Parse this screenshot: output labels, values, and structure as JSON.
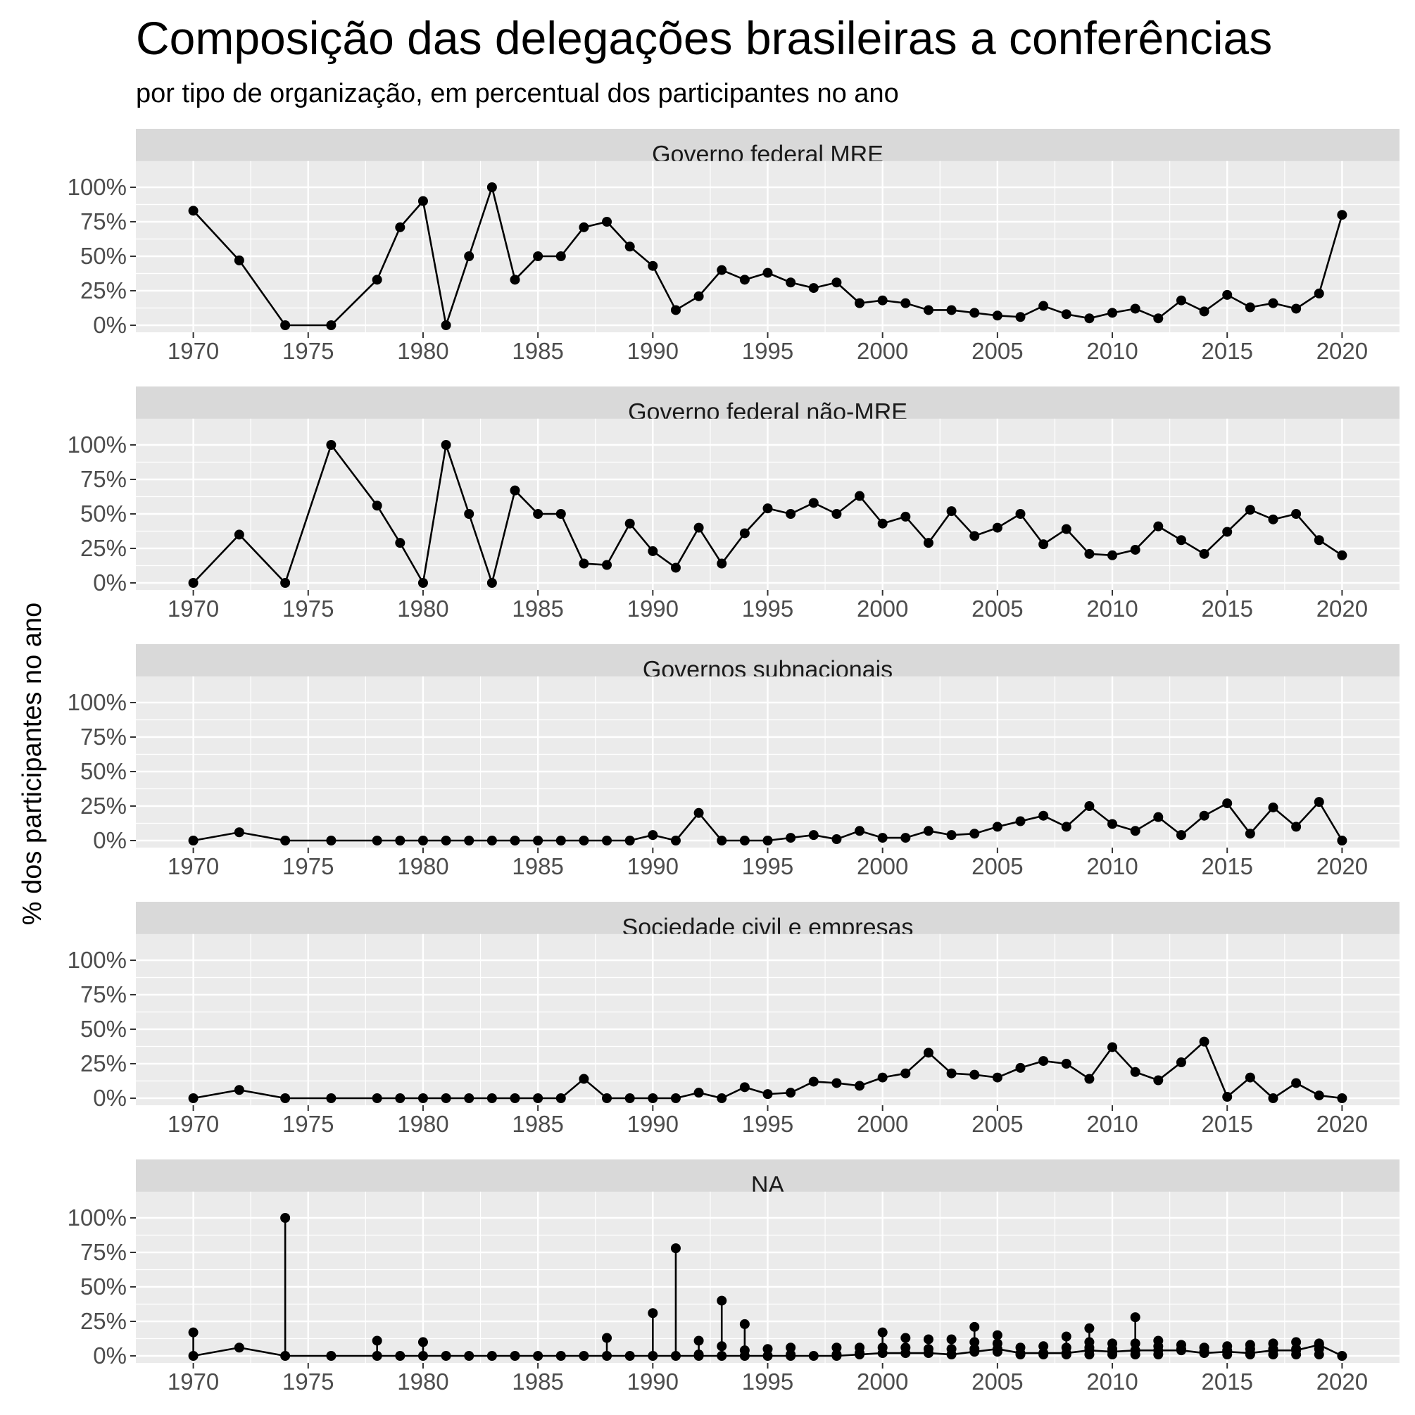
{
  "chart_data": {
    "type": "line",
    "title": "Composição das delegações brasileiras a conferências",
    "subtitle": "por tipo de organização, em percentual dos participantes no ano",
    "ylabel": "% dos participantes no ano",
    "xlabel": "",
    "xlim": [
      1967.5,
      2022.5
    ],
    "ylim": [
      0,
      1.19
    ],
    "x_ticks": [
      1970,
      1975,
      1980,
      1985,
      1990,
      1995,
      2000,
      2005,
      2010,
      2015,
      2020
    ],
    "y_ticks": [
      0,
      0.25,
      0.5,
      0.75,
      1.0
    ],
    "y_tick_labels": [
      "0%",
      "25%",
      "50%",
      "75%",
      "100%"
    ],
    "grid": true,
    "colors": {
      "line": "#000000",
      "panel_bg": "#ebebeb",
      "strip_bg": "#d9d9d9",
      "grid": "#ffffff"
    },
    "panels": [
      {
        "name": "Governo federal MRE",
        "x": [
          1970,
          1972,
          1974,
          1976,
          1978,
          1979,
          1980,
          1981,
          1982,
          1983,
          1984,
          1985,
          1986,
          1987,
          1988,
          1989,
          1990,
          1991,
          1992,
          1993,
          1994,
          1995,
          1996,
          1997,
          1998,
          1999,
          2000,
          2001,
          2002,
          2003,
          2004,
          2005,
          2006,
          2007,
          2008,
          2009,
          2010,
          2011,
          2012,
          2013,
          2014,
          2015,
          2016,
          2017,
          2018,
          2019,
          2020
        ],
        "y": [
          0.83,
          0.47,
          0,
          0,
          0.33,
          0.71,
          0.9,
          0,
          0.5,
          1.0,
          0.33,
          0.5,
          0.5,
          0.71,
          0.75,
          0.57,
          0.43,
          0.11,
          0.21,
          0.4,
          0.33,
          0.38,
          0.31,
          0.27,
          0.31,
          0.16,
          0.18,
          0.16,
          0.11,
          0.11,
          0.09,
          0.07,
          0.06,
          0.14,
          0.08,
          0.05,
          0.09,
          0.12,
          0.05,
          0.18,
          0.1,
          0.22,
          0.13,
          0.16,
          0.12,
          0.23,
          0.8
        ]
      },
      {
        "name": "Governo federal não-MRE",
        "x": [
          1970,
          1972,
          1974,
          1976,
          1978,
          1979,
          1980,
          1981,
          1982,
          1983,
          1984,
          1985,
          1986,
          1987,
          1988,
          1989,
          1990,
          1991,
          1992,
          1993,
          1994,
          1995,
          1996,
          1997,
          1998,
          1999,
          2000,
          2001,
          2002,
          2003,
          2004,
          2005,
          2006,
          2007,
          2008,
          2009,
          2010,
          2011,
          2012,
          2013,
          2014,
          2015,
          2016,
          2017,
          2018,
          2019,
          2020
        ],
        "y": [
          0,
          0.35,
          0,
          1.0,
          0.56,
          0.29,
          0,
          1.0,
          0.5,
          0,
          0.67,
          0.5,
          0.5,
          0.14,
          0.13,
          0.43,
          0.23,
          0.11,
          0.4,
          0.14,
          0.36,
          0.54,
          0.5,
          0.58,
          0.5,
          0.63,
          0.43,
          0.48,
          0.29,
          0.52,
          0.34,
          0.4,
          0.5,
          0.28,
          0.39,
          0.21,
          0.2,
          0.24,
          0.41,
          0.31,
          0.21,
          0.37,
          0.53,
          0.46,
          0.5,
          0.31,
          0.2
        ]
      },
      {
        "name": "Governos subnacionais",
        "x": [
          1970,
          1972,
          1974,
          1976,
          1978,
          1979,
          1980,
          1981,
          1982,
          1983,
          1984,
          1985,
          1986,
          1987,
          1988,
          1989,
          1990,
          1991,
          1992,
          1993,
          1994,
          1995,
          1996,
          1997,
          1998,
          1999,
          2000,
          2001,
          2002,
          2003,
          2004,
          2005,
          2006,
          2007,
          2008,
          2009,
          2010,
          2011,
          2012,
          2013,
          2014,
          2015,
          2016,
          2017,
          2018,
          2019,
          2020
        ],
        "y": [
          0,
          0.06,
          0,
          0,
          0,
          0,
          0,
          0,
          0,
          0,
          0,
          0,
          0,
          0,
          0,
          0,
          0.04,
          0,
          0.2,
          0,
          0,
          0,
          0.02,
          0.04,
          0.01,
          0.07,
          0.02,
          0.02,
          0.07,
          0.04,
          0.05,
          0.1,
          0.14,
          0.18,
          0.1,
          0.25,
          0.12,
          0.07,
          0.17,
          0.04,
          0.18,
          0.27,
          0.05,
          0.24,
          0.1,
          0.28,
          0
        ]
      },
      {
        "name": "Sociedade civil e empresas",
        "x": [
          1970,
          1972,
          1974,
          1976,
          1978,
          1979,
          1980,
          1981,
          1982,
          1983,
          1984,
          1985,
          1986,
          1987,
          1988,
          1989,
          1990,
          1991,
          1992,
          1993,
          1994,
          1995,
          1996,
          1997,
          1998,
          1999,
          2000,
          2001,
          2002,
          2003,
          2004,
          2005,
          2006,
          2007,
          2008,
          2009,
          2010,
          2011,
          2012,
          2013,
          2014,
          2015,
          2016,
          2017,
          2018,
          2019,
          2020
        ],
        "y": [
          0,
          0.06,
          0,
          0,
          0,
          0,
          0,
          0,
          0,
          0,
          0,
          0,
          0,
          0.14,
          0,
          0,
          0,
          0,
          0.04,
          0,
          0.08,
          0.03,
          0.04,
          0.12,
          0.11,
          0.09,
          0.15,
          0.18,
          0.33,
          0.18,
          0.17,
          0.15,
          0.22,
          0.27,
          0.25,
          0.14,
          0.37,
          0.19,
          0.13,
          0.26,
          0.41,
          0.01,
          0.15,
          0,
          0.11,
          0.02,
          0
        ]
      },
      {
        "name": "NA",
        "x": [
          1970,
          1972,
          1974,
          1976,
          1978,
          1979,
          1980,
          1981,
          1982,
          1983,
          1984,
          1985,
          1986,
          1987,
          1988,
          1989,
          1990,
          1991,
          1992,
          1993,
          1994,
          1995,
          1996,
          1997,
          1998,
          1999,
          2000,
          2001,
          2002,
          2003,
          2004,
          2005,
          2006,
          2007,
          2008,
          2009,
          2010,
          2011,
          2012,
          2013,
          2014,
          2015,
          2016,
          2017,
          2018,
          2019,
          2020
        ],
        "y": [
          0,
          0.06,
          0,
          0,
          0,
          0,
          0,
          0,
          0,
          0,
          0,
          0,
          0,
          0,
          0,
          0,
          0,
          0,
          0,
          0,
          0,
          0,
          0,
          0,
          0,
          0.01,
          0.02,
          0.02,
          0.02,
          0.01,
          0.03,
          0.05,
          0.02,
          0.02,
          0.02,
          0.04,
          0.03,
          0.04,
          0.04,
          0.04,
          0.02,
          0.03,
          0.02,
          0.04,
          0.04,
          0.08,
          0
        ],
        "extra_points": [
          {
            "x": 1970,
            "y": [
              0.17
            ]
          },
          {
            "x": 1974,
            "y": [
              1.0
            ]
          },
          {
            "x": 1978,
            "y": [
              0.11
            ]
          },
          {
            "x": 1980,
            "y": [
              0.1
            ]
          },
          {
            "x": 1988,
            "y": [
              0.13
            ]
          },
          {
            "x": 1990,
            "y": [
              0.31
            ]
          },
          {
            "x": 1991,
            "y": [
              0.78
            ]
          },
          {
            "x": 1992,
            "y": [
              0.11,
              0.01
            ]
          },
          {
            "x": 1993,
            "y": [
              0.4,
              0.07
            ]
          },
          {
            "x": 1994,
            "y": [
              0.23,
              0.04
            ]
          },
          {
            "x": 1995,
            "y": [
              0.05
            ]
          },
          {
            "x": 1996,
            "y": [
              0.06,
              0.01
            ]
          },
          {
            "x": 1998,
            "y": [
              0.06,
              0.01
            ]
          },
          {
            "x": 1999,
            "y": [
              0.06,
              0.02
            ]
          },
          {
            "x": 2000,
            "y": [
              0.17,
              0.06
            ]
          },
          {
            "x": 2001,
            "y": [
              0.13,
              0.06
            ]
          },
          {
            "x": 2002,
            "y": [
              0.12,
              0.05
            ]
          },
          {
            "x": 2003,
            "y": [
              0.12,
              0.05
            ]
          },
          {
            "x": 2004,
            "y": [
              0.21,
              0.1,
              0.05
            ]
          },
          {
            "x": 2005,
            "y": [
              0.15,
              0.09,
              0.03
            ]
          },
          {
            "x": 2006,
            "y": [
              0.06,
              0.01
            ]
          },
          {
            "x": 2007,
            "y": [
              0.07,
              0.01
            ]
          },
          {
            "x": 2008,
            "y": [
              0.14,
              0.06,
              0.01
            ]
          },
          {
            "x": 2009,
            "y": [
              0.2,
              0.1,
              0.06,
              0.01
            ]
          },
          {
            "x": 2010,
            "y": [
              0.09,
              0.05,
              0.01
            ]
          },
          {
            "x": 2011,
            "y": [
              0.28,
              0.09,
              0.01
            ]
          },
          {
            "x": 2012,
            "y": [
              0.11,
              0.07,
              0.01
            ]
          },
          {
            "x": 2013,
            "y": [
              0.08,
              0.05
            ]
          },
          {
            "x": 2014,
            "y": [
              0.06,
              0.03
            ]
          },
          {
            "x": 2015,
            "y": [
              0.07,
              0.04,
              0.01
            ]
          },
          {
            "x": 2016,
            "y": [
              0.08,
              0.05,
              0.01
            ]
          },
          {
            "x": 2017,
            "y": [
              0.09,
              0.05,
              0.01
            ]
          },
          {
            "x": 2018,
            "y": [
              0.1,
              0.05,
              0.01
            ]
          },
          {
            "x": 2019,
            "y": [
              0.09,
              0.05,
              0.01
            ]
          }
        ]
      }
    ]
  }
}
